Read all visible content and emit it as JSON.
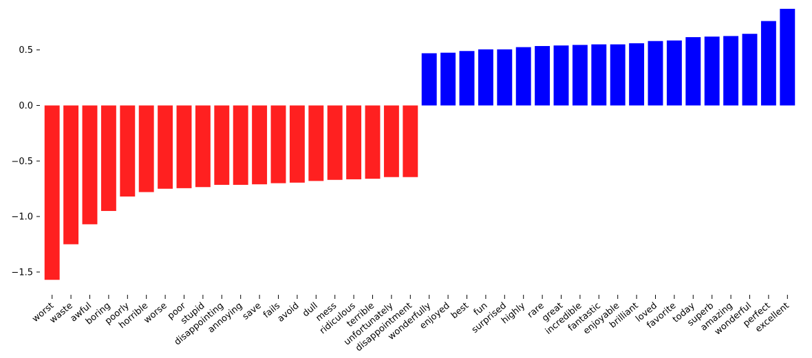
{
  "chart_data": {
    "type": "bar",
    "categories": [
      "worst",
      "waste",
      "awful",
      "boring",
      "poorly",
      "horrible",
      "worse",
      "poor",
      "stupid",
      "disappointing",
      "annoying",
      "save",
      "fails",
      "avoid",
      "dull",
      "mess",
      "ridiculous",
      "terrible",
      "unfortunately",
      "disappointment",
      "wonderfully",
      "enjoyed",
      "best",
      "fun",
      "surprised",
      "highly",
      "rare",
      "great",
      "incredible",
      "fantastic",
      "enjoyable",
      "brilliant",
      "loved",
      "favorite",
      "today",
      "superb",
      "amazing",
      "wonderful",
      "perfect",
      "excellent"
    ],
    "values": [
      -1.57,
      -1.25,
      -1.07,
      -0.95,
      -0.82,
      -0.78,
      -0.75,
      -0.745,
      -0.735,
      -0.715,
      -0.715,
      -0.71,
      -0.7,
      -0.695,
      -0.68,
      -0.67,
      -0.665,
      -0.66,
      -0.645,
      -0.645,
      0.47,
      0.475,
      0.49,
      0.505,
      0.505,
      0.525,
      0.535,
      0.54,
      0.545,
      0.55,
      0.55,
      0.56,
      0.58,
      0.585,
      0.615,
      0.62,
      0.625,
      0.645,
      0.76,
      0.87
    ],
    "yticks": [
      -1.5,
      -1.0,
      -0.5,
      0.0,
      0.5
    ],
    "ytick_labels": [
      "−1.5",
      "−1.0",
      "−0.5",
      "0.0",
      "0.5"
    ],
    "ylim": [
      -1.68,
      0.9
    ],
    "colors": {
      "negative": "#ff2020",
      "positive": "#0000ff"
    },
    "title": "",
    "xlabel": "",
    "ylabel": "",
    "grid": false,
    "legend": "none"
  }
}
